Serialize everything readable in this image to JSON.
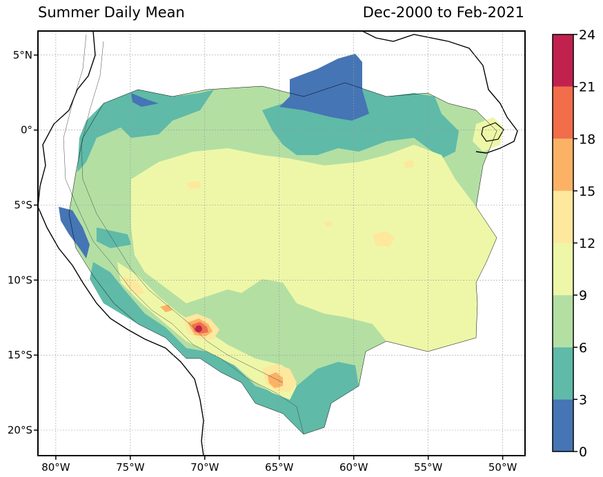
{
  "map": {
    "title_left": "Summer Daily Mean",
    "title_right": "Dec-2000 to Feb-2021",
    "lat_labels": [
      "5°N",
      "0°",
      "5°S",
      "10°S",
      "15°S",
      "20°S"
    ],
    "lon_labels": [
      "80°W",
      "75°W",
      "70°W",
      "65°W",
      "60°W",
      "55°W",
      "50°W"
    ],
    "extent": {
      "lon_min": -81.2,
      "lon_max": -48.5,
      "lat_min": -21.7,
      "lat_max": 6.6
    },
    "grid": true
  },
  "colorbar": {
    "ticks": [
      "0",
      "3",
      "6",
      "9",
      "12",
      "15",
      "18",
      "21",
      "24"
    ],
    "colors": [
      "#4575b4",
      "#5fbaa8",
      "#b3dfa3",
      "#eef7a8",
      "#fde89d",
      "#fcb265",
      "#f26d4a",
      "#c0224d"
    ]
  }
}
